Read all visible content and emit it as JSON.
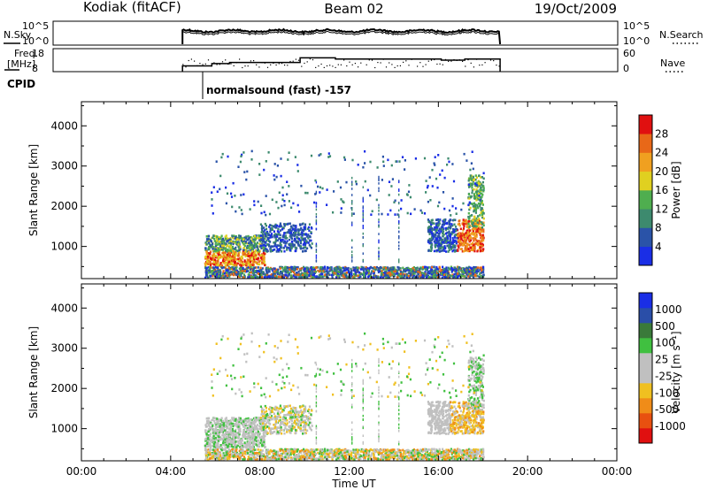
{
  "header": {
    "station": "Kodiak (fitACF)",
    "beam": "Beam 02",
    "date": "19/Oct/2009"
  },
  "panel_sky": {
    "left_label": "N.Sky",
    "left_ticks": [
      "10^5",
      "10^0"
    ],
    "right_ticks": [
      "10^5",
      "10^0"
    ],
    "right_label": "N.Search"
  },
  "panel_freq": {
    "left_label_1": "Freq.",
    "left_label_2": "[MHz]",
    "left_ticks": [
      "18",
      "8"
    ],
    "right_ticks": [
      "60",
      "0"
    ],
    "right_label": "Nave"
  },
  "cpid": {
    "label": "CPID",
    "program": "normalsound (fast) -157"
  },
  "colors": {
    "power_scale": [
      "#1a2ee6",
      "#2a53a8",
      "#3d8a6e",
      "#4fae4f",
      "#e0d020",
      "#f0a020",
      "#e86818",
      "#e01010"
    ],
    "velocity_scale": [
      "#e01010",
      "#e85010",
      "#f08c18",
      "#f0c020",
      "#c0c0c0",
      "#c0c0c0",
      "#40c040",
      "#3a7a3a",
      "#2a4ea8",
      "#1a2ee6"
    ]
  },
  "chart_data": [
    {
      "type": "line",
      "panel": "n-sky-search",
      "x": [
        "05:30",
        "19:00"
      ],
      "y_scale": "log",
      "ylim": [
        "10^0",
        "10^5"
      ],
      "series": []
    },
    {
      "type": "line",
      "panel": "frequency-nave",
      "x": [
        "05:30",
        "06:45",
        "07:30",
        "10:30",
        "12:00",
        "16:30",
        "17:30",
        "19:00"
      ],
      "ylim_left": [
        8,
        18
      ],
      "ylim_right": [
        0,
        60
      ],
      "series": [
        {
          "axis": "freq",
          "values": [
            10.5,
            11.5,
            12,
            14,
            13.5,
            13,
            13.5,
            13.5
          ]
        }
      ]
    },
    {
      "type": "heatmap",
      "panel": "power",
      "ylabel": "Slant Range [km]",
      "y_ticks": [
        1000,
        2000,
        3000,
        4000
      ],
      "ylim": [
        200,
        4600
      ],
      "colorbar_label": "Power [dB]",
      "colorbar_ticks": [
        4,
        8,
        12,
        16,
        20,
        24,
        28
      ]
    },
    {
      "type": "heatmap",
      "panel": "velocity",
      "ylabel": "Slant Range [km]",
      "y_ticks": [
        1000,
        2000,
        3000,
        4000
      ],
      "ylim": [
        200,
        4600
      ],
      "colorbar_label": "Velocity [m s⁻¹]",
      "colorbar_ticks": [
        "1000",
        "500",
        "100",
        "25",
        "-25",
        "-100",
        "-500",
        "-1000"
      ]
    }
  ],
  "x_axis": {
    "label": "Time UT",
    "ticks": [
      "00:00",
      "04:00",
      "08:00",
      "12:00",
      "16:00",
      "20:00",
      "00:00"
    ]
  }
}
